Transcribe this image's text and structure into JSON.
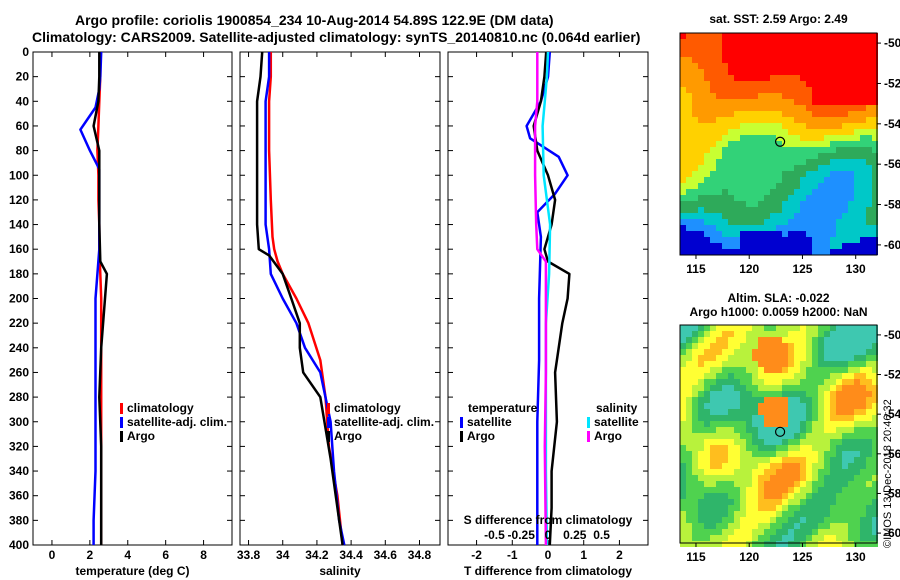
{
  "header": {
    "line1": "Argo profile: coriolis 1900854_234 10-Aug-2014 54.89S 122.9E (DM data)",
    "line2": "Climatology: CARS2009. Satellite-adjusted climatology: synTS_20140810.nc (0.064d earlier)"
  },
  "colors": {
    "climatology": "#ff0000",
    "satellite": "#0000ff",
    "argo": "#000000",
    "sat_salinity": "#00e5ff",
    "argo_salinity_diff": "#ff00ff"
  },
  "depth_axis": {
    "ticks": [
      0,
      20,
      40,
      60,
      80,
      100,
      120,
      140,
      160,
      180,
      200,
      220,
      240,
      260,
      280,
      300,
      320,
      340,
      360,
      380,
      400
    ],
    "range": [
      0,
      400
    ]
  },
  "chart_data": [
    {
      "type": "line",
      "name": "temperature-profile",
      "xlabel": "temperature (deg C)",
      "xlim": [
        -1,
        9.5
      ],
      "xticks": [
        0,
        2,
        4,
        6,
        8
      ],
      "ylim": [
        400,
        0
      ],
      "legend": [
        "climatology",
        "satellite-adj. clim.",
        "Argo"
      ],
      "series": [
        {
          "name": "climatology",
          "color": "#ff0000",
          "x": [
            2.55,
            2.55,
            2.5,
            2.45,
            2.4,
            2.45,
            2.45,
            2.5,
            2.5,
            2.55,
            2.6,
            2.6,
            2.6,
            2.6,
            2.6
          ],
          "y": [
            0,
            20,
            40,
            60,
            80,
            100,
            120,
            140,
            160,
            180,
            200,
            240,
            300,
            360,
            400
          ]
        },
        {
          "name": "satellite-adj. clim.",
          "color": "#0000ff",
          "x": [
            2.6,
            2.55,
            2.5,
            2.3,
            1.5,
            2.0,
            2.5,
            2.5,
            2.5,
            2.4,
            2.3,
            2.3,
            2.3,
            2.3,
            2.2,
            2.2
          ],
          "y": [
            0,
            20,
            30,
            45,
            63,
            80,
            95,
            120,
            160,
            180,
            200,
            240,
            300,
            340,
            380,
            400
          ]
        },
        {
          "name": "Argo",
          "color": "#000000",
          "x": [
            2.5,
            2.5,
            2.45,
            2.2,
            2.5,
            2.5,
            2.5,
            2.5,
            2.55,
            2.9,
            2.8,
            2.6,
            2.5,
            2.6,
            2.6,
            2.6
          ],
          "y": [
            0,
            20,
            40,
            60,
            80,
            95,
            110,
            140,
            170,
            180,
            200,
            240,
            280,
            320,
            360,
            400
          ]
        }
      ]
    },
    {
      "type": "line",
      "name": "salinity-profile",
      "xlabel": "salinity",
      "xlim": [
        33.75,
        34.92
      ],
      "xticks": [
        33.8,
        34,
        34.2,
        34.4,
        34.6,
        34.8
      ],
      "xticklabels": [
        "33.8",
        "34",
        "34.2",
        "34.4",
        "34.6",
        "34.8"
      ],
      "ylim": [
        400,
        0
      ],
      "legend": [
        "climatology",
        "satellite-adj. clim.",
        "Argo"
      ],
      "series": [
        {
          "name": "climatology",
          "color": "#ff0000",
          "x": [
            33.93,
            33.93,
            33.92,
            33.92,
            33.93,
            33.94,
            33.95,
            33.97,
            34.0,
            34.08,
            34.15,
            34.22,
            34.25,
            34.27,
            34.32,
            34.35
          ],
          "y": [
            0,
            20,
            40,
            80,
            120,
            150,
            160,
            170,
            180,
            200,
            220,
            250,
            280,
            320,
            360,
            400
          ]
        },
        {
          "name": "satellite-adj. clim.",
          "color": "#0000ff",
          "x": [
            33.92,
            33.92,
            33.9,
            33.9,
            33.9,
            33.92,
            33.93,
            34.0,
            34.08,
            34.13,
            34.22,
            34.28,
            34.3,
            34.33,
            34.36
          ],
          "y": [
            0,
            20,
            40,
            100,
            140,
            160,
            180,
            200,
            220,
            240,
            260,
            300,
            340,
            380,
            400
          ]
        },
        {
          "name": "Argo",
          "color": "#000000",
          "x": [
            33.88,
            33.87,
            33.85,
            33.85,
            33.85,
            33.86,
            33.92,
            34.0,
            34.05,
            34.1,
            34.1,
            34.12,
            34.22,
            34.28,
            34.35
          ],
          "y": [
            0,
            20,
            40,
            100,
            140,
            160,
            165,
            180,
            200,
            220,
            240,
            260,
            280,
            330,
            400
          ]
        }
      ]
    },
    {
      "type": "line",
      "name": "difference-profile",
      "xlabel": "T difference from climatology",
      "xlim": [
        -2.8,
        2.8
      ],
      "xticks": [
        -2,
        -1,
        0,
        1,
        2
      ],
      "secondary_axis": {
        "label": "S difference from climatology",
        "ticks": [
          -0.5,
          -0.25,
          0,
          0.25,
          0.5
        ],
        "ticklabels": [
          "-0.5",
          "-0.25",
          "0",
          "0.25",
          "0.5"
        ]
      },
      "ylim": [
        400,
        0
      ],
      "legend_temperature": {
        "title": "temperature",
        "items": [
          "satellite",
          "Argo"
        ]
      },
      "legend_salinity": {
        "title": "salinity",
        "items": [
          "satellite",
          "Argo"
        ]
      },
      "series": [
        {
          "name": "temperature satellite",
          "color": "#0000ff",
          "x": [
            0.05,
            0.0,
            -0.2,
            -0.6,
            -0.5,
            0.3,
            0.55,
            0.2,
            -0.3,
            -0.2,
            -0.25,
            -0.25,
            -0.3,
            -0.3,
            -0.3
          ],
          "y": [
            0,
            20,
            40,
            60,
            70,
            85,
            100,
            115,
            130,
            150,
            200,
            250,
            300,
            350,
            400
          ]
        },
        {
          "name": "temperature Argo",
          "color": "#000000",
          "x": [
            -0.05,
            -0.1,
            -0.2,
            -0.4,
            -0.3,
            0.0,
            0.2,
            0.1,
            -0.1,
            0.0,
            0.6,
            0.55,
            0.4,
            0.2,
            0.25,
            0.1,
            0.1,
            0.05
          ],
          "y": [
            0,
            20,
            40,
            60,
            80,
            100,
            120,
            140,
            160,
            170,
            180,
            200,
            220,
            260,
            300,
            340,
            370,
            400
          ]
        },
        {
          "name": "salinity satellite",
          "color": "#00e5ff",
          "x": [
            0.0,
            -0.01,
            -0.03,
            -0.05,
            -0.04,
            0.02,
            0.01,
            -0.02,
            -0.02,
            -0.02,
            -0.01
          ],
          "y": [
            0,
            20,
            40,
            60,
            100,
            140,
            180,
            220,
            280,
            340,
            400
          ]
        },
        {
          "name": "salinity Argo",
          "color": "#ff00ff",
          "x": [
            -0.1,
            -0.1,
            -0.1,
            -0.12,
            -0.12,
            -0.11,
            -0.1,
            -0.02,
            -0.02,
            -0.02,
            -0.03,
            -0.02
          ],
          "y": [
            0,
            20,
            40,
            60,
            100,
            140,
            160,
            170,
            200,
            260,
            320,
            400
          ]
        }
      ]
    },
    {
      "type": "heatmap",
      "name": "sst-map",
      "title": "sat. SST: 2.59 Argo: 2.49",
      "xlim": [
        113.5,
        132
      ],
      "ylim": [
        -60.5,
        -49.5
      ],
      "xticks": [
        115,
        120,
        125,
        130
      ],
      "yticks": [
        -50,
        -52,
        -54,
        -56,
        -58,
        -60
      ],
      "yticklabels": [
        "-50",
        "-52",
        "-54",
        "-56",
        "-58",
        "-60"
      ],
      "argo_position": {
        "lon": 122.9,
        "lat": -54.89
      }
    },
    {
      "type": "heatmap",
      "name": "sla-map",
      "title": "Altim. SLA: -0.022",
      "subtitle": "Argo h1000: 0.0059 h2000: NaN",
      "xlim": [
        113.5,
        132
      ],
      "ylim": [
        -60.5,
        -49.5
      ],
      "xticks": [
        115,
        120,
        125,
        130
      ],
      "yticks": [
        -50,
        -52,
        -54,
        -56,
        -58,
        -60
      ],
      "yticklabels": [
        "-50",
        "-52",
        "-54",
        "-56",
        "-58",
        "-60"
      ],
      "argo_position": {
        "lon": 122.9,
        "lat": -54.89
      }
    }
  ],
  "watermark": "©IMOS 13-Dec-2018 20:46:32"
}
